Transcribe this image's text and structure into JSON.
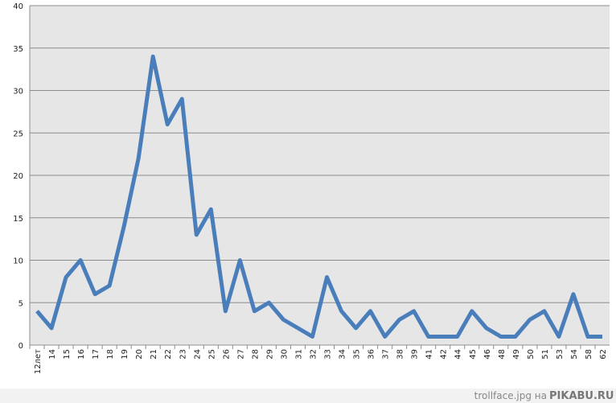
{
  "chart_data": {
    "type": "line",
    "categories": [
      "12лет",
      "14",
      "15",
      "16",
      "17",
      "18",
      "19",
      "20",
      "21",
      "22",
      "23",
      "24",
      "25",
      "26",
      "27",
      "28",
      "29",
      "30",
      "31",
      "32",
      "33",
      "34",
      "35",
      "36",
      "37",
      "38",
      "39",
      "41",
      "42",
      "44",
      "45",
      "46",
      "48",
      "49",
      "50",
      "51",
      "53",
      "54",
      "58",
      "62"
    ],
    "series": [
      {
        "color": "#4a7ebb",
        "values": [
          4,
          2,
          8,
          10,
          6,
          7,
          14,
          22,
          34,
          26,
          29,
          13,
          16,
          4,
          10,
          4,
          5,
          3,
          2,
          1,
          8,
          4,
          2,
          4,
          1,
          3,
          4,
          1,
          1,
          1,
          4,
          2,
          1,
          1,
          3,
          4,
          1,
          6,
          1,
          1
        ]
      }
    ],
    "ylim": [
      0,
      40
    ],
    "yticks": [
      0,
      5,
      10,
      15,
      20,
      25,
      30,
      35,
      40
    ],
    "grid": true
  },
  "watermark": {
    "file": "trollface.jpg на",
    "site": "PIKABU.RU"
  }
}
